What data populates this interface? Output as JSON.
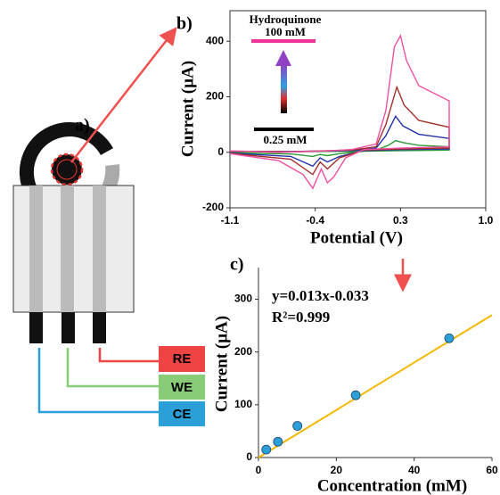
{
  "diagram": {
    "panel_label": "a)",
    "electrodes": [
      "RE",
      "WE",
      "CE"
    ]
  },
  "chart_data": [
    {
      "type": "line",
      "panel_label": "b)",
      "x_label": "Potential (V)",
      "y_label": "Current (µA)",
      "annotations": [
        "Hydroquinone",
        "100 mM",
        "0.25 mM"
      ],
      "xlim": [
        -1.1,
        1.0
      ],
      "xticks": [
        -1.1,
        -0.4,
        0.3,
        {
          "value": 1,
          "label": "1.0"
        }
      ],
      "ylim": [
        -200,
        510
      ],
      "yticks": [
        -200,
        0,
        200,
        400
      ],
      "series": [
        {
          "color": "#2e9a3a",
          "x": [
            -1.1,
            -0.6,
            -0.1,
            0.1,
            0.2,
            0.26,
            0.32,
            0.45,
            0.7,
            0.7,
            0.3,
            0.0,
            -0.2,
            -0.3,
            -0.36,
            -0.42,
            -0.6,
            -1.1
          ],
          "values": [
            2,
            2,
            4,
            8,
            25,
            42,
            35,
            25,
            20,
            8,
            6,
            4,
            -5,
            -12,
            -8,
            -15,
            -6,
            -2
          ]
        },
        {
          "color": "#2233aa",
          "x": [
            -1.1,
            -0.6,
            -0.1,
            0.1,
            0.18,
            0.26,
            0.32,
            0.45,
            0.7,
            0.7,
            0.3,
            0.0,
            -0.2,
            -0.3,
            -0.36,
            -0.42,
            -0.6,
            -1.1
          ],
          "values": [
            3,
            3,
            6,
            15,
            60,
            130,
            95,
            65,
            50,
            12,
            10,
            6,
            -15,
            -35,
            -20,
            -50,
            -15,
            -3
          ]
        },
        {
          "color": "#a3302a",
          "x": [
            -1.1,
            -0.6,
            -0.1,
            0.1,
            0.18,
            0.27,
            0.33,
            0.45,
            0.7,
            0.7,
            0.3,
            0.0,
            -0.2,
            -0.3,
            -0.36,
            -0.42,
            -0.6,
            -1.1
          ],
          "values": [
            4,
            2,
            8,
            20,
            100,
            235,
            170,
            115,
            90,
            15,
            12,
            8,
            -20,
            -60,
            -35,
            -80,
            -25,
            -4
          ]
        },
        {
          "color": "#ee4fa0",
          "x": [
            -1.1,
            -0.7,
            -0.3,
            -0.1,
            0.1,
            0.18,
            0.25,
            0.3,
            0.35,
            0.45,
            0.7,
            0.7,
            0.3,
            0.0,
            -0.15,
            -0.25,
            -0.3,
            -0.35,
            -0.42,
            -0.5,
            -0.7,
            -1.1
          ],
          "values": [
            5,
            0,
            5,
            10,
            30,
            150,
            380,
            420,
            330,
            240,
            185,
            20,
            15,
            10,
            -20,
            -90,
            -110,
            -60,
            -130,
            -80,
            -30,
            -5
          ]
        }
      ]
    },
    {
      "type": "scatter",
      "panel_label": "c)",
      "x_label": "Concentration (mM)",
      "y_label": "Current (µA)",
      "annotations": [
        "y=0.013x-0.033",
        "R²=0.999"
      ],
      "xlim": [
        0,
        60
      ],
      "xticks": [
        0,
        20,
        40,
        60
      ],
      "ylim": [
        0,
        360
      ],
      "yticks": [
        0,
        100,
        200,
        300
      ],
      "color": "#2a9fd8",
      "x": [
        2,
        5,
        10,
        25,
        49
      ],
      "values": [
        15,
        30,
        60,
        118,
        226
      ],
      "fit": {
        "color": "#f5b800",
        "x": [
          0,
          60
        ],
        "values": [
          0,
          270
        ]
      }
    }
  ]
}
